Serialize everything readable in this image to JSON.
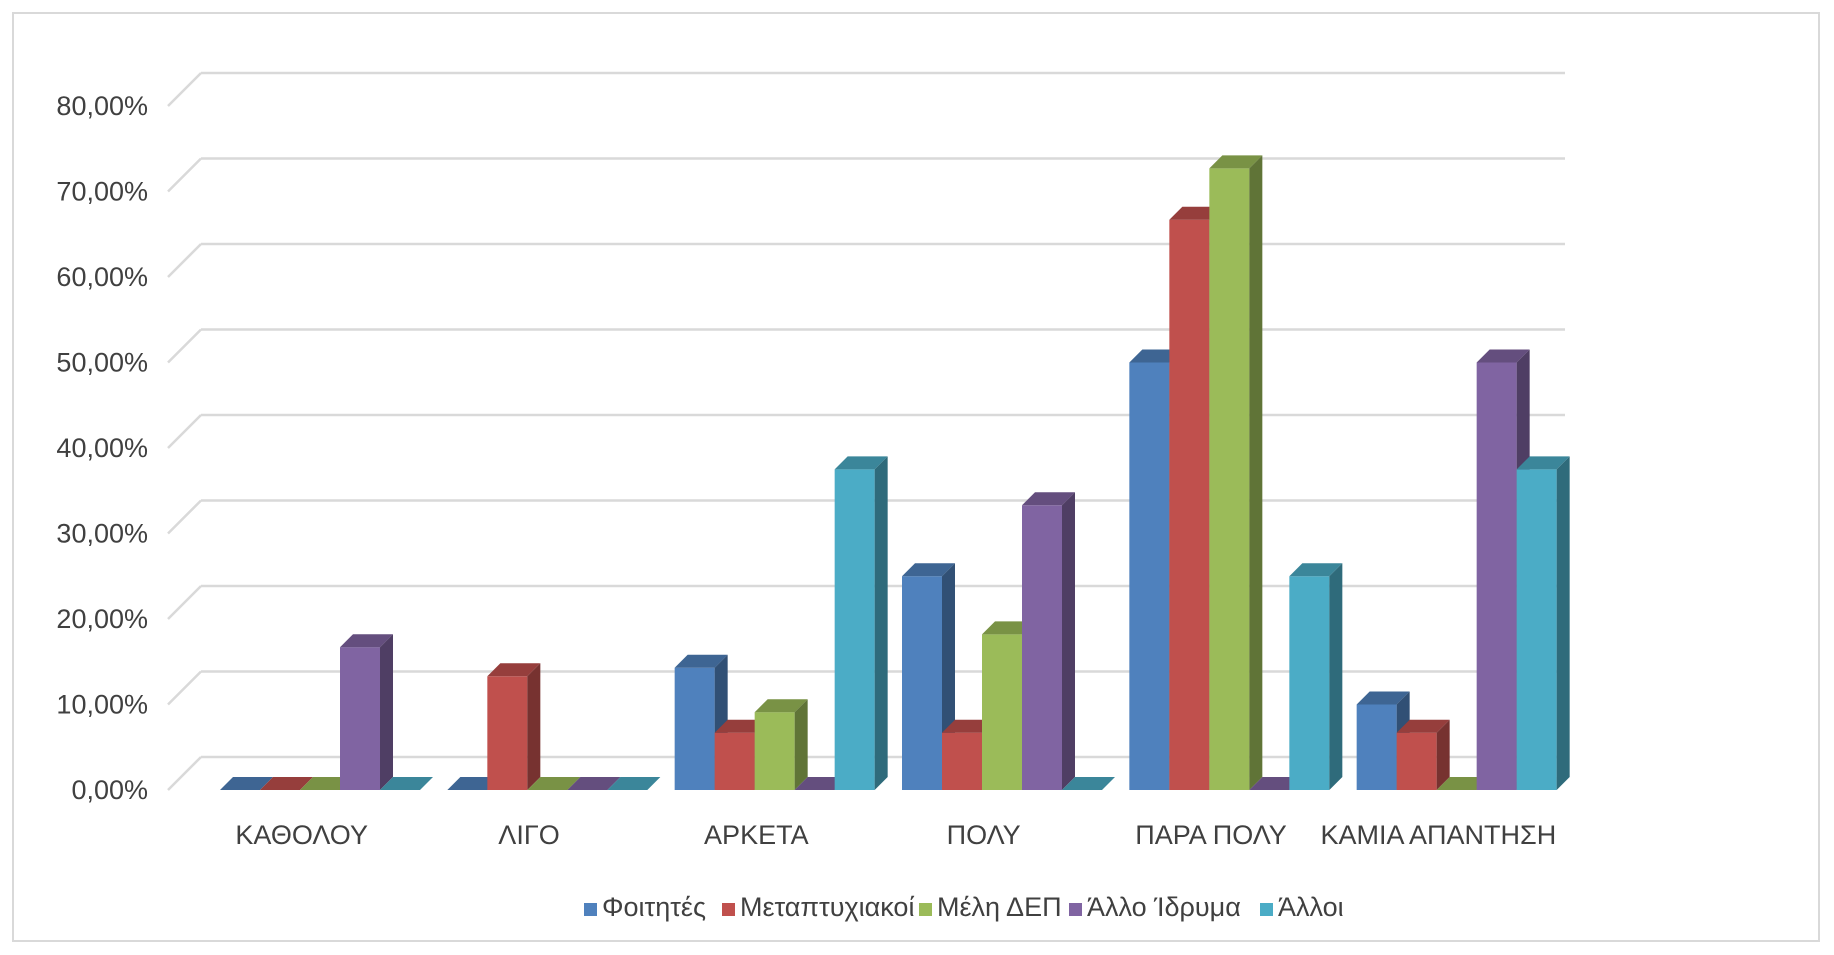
{
  "chart_data": {
    "type": "bar",
    "style": "3d-clustered-column",
    "categories": [
      "ΚΑΘΟΛΟΥ",
      "ΛΙΓΟ",
      "ΑΡΚΕΤΑ",
      "ΠΟΛΥ",
      "ΠΑΡΑ ΠΟΛΥ",
      "ΚΑΜΙΑ ΑΠΑΝΤΗΣΗ"
    ],
    "series": [
      {
        "name": "Φοιτητές",
        "color": "#4f81bd",
        "values": [
          0,
          0,
          14.3,
          25.0,
          50.0,
          10.0
        ]
      },
      {
        "name": "Μεταπτυχιακοί",
        "color": "#c0504d",
        "values": [
          0,
          13.3,
          6.7,
          6.7,
          66.7,
          6.7
        ]
      },
      {
        "name": "Μέλη ΔΕΠ",
        "color": "#9bbb59",
        "values": [
          0,
          0,
          9.1,
          18.2,
          72.7,
          0
        ]
      },
      {
        "name": "Άλλο Ίδρυμα",
        "color": "#8064a2",
        "values": [
          16.7,
          0,
          0,
          33.3,
          0,
          50.0
        ]
      },
      {
        "name": "Άλλοι",
        "color": "#4bacc6",
        "values": [
          0,
          0,
          37.5,
          0,
          25.0,
          37.5
        ]
      }
    ],
    "y_ticks": [
      "0,00%",
      "10,00%",
      "20,00%",
      "30,00%",
      "40,00%",
      "50,00%",
      "60,00%",
      "70,00%",
      "80,00%"
    ],
    "ylim": [
      0,
      80
    ],
    "y_unit": "%",
    "grid": true,
    "legend_position": "bottom",
    "title": "",
    "xlabel": "",
    "ylabel": ""
  }
}
